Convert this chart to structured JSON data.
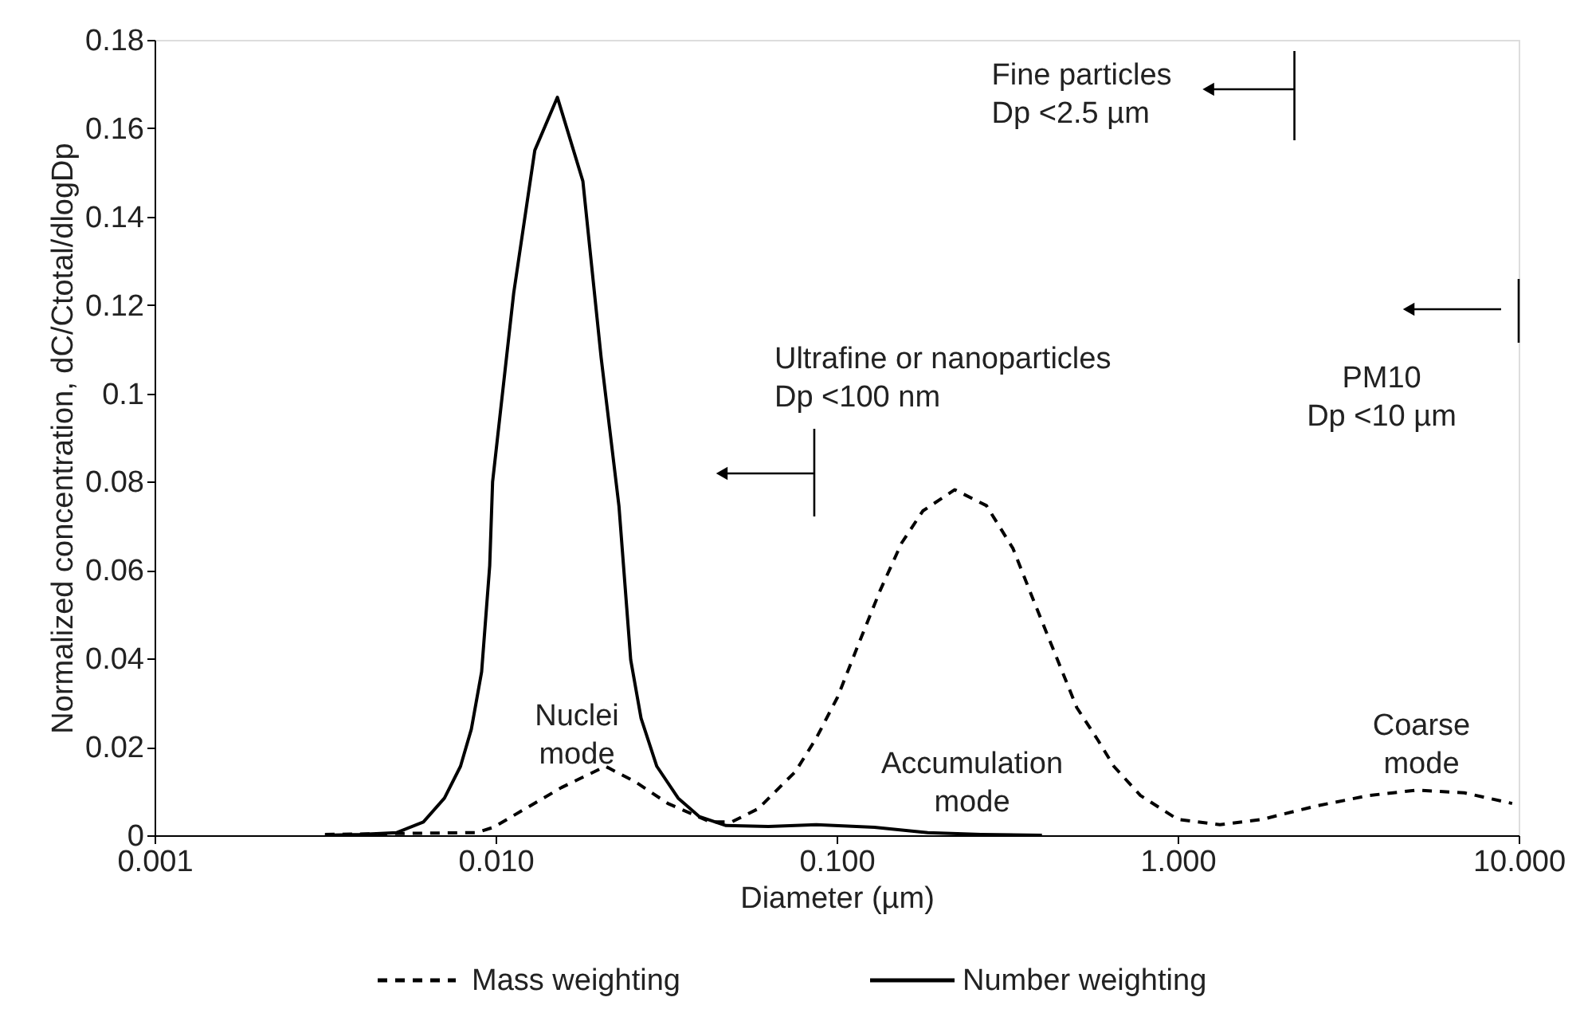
{
  "chart_data": {
    "type": "line",
    "xlabel": "Diameter (µm)",
    "ylabel": "Normalized concentration, dC/Ctotal/dlogDp",
    "log": "x",
    "xlim": [
      0.001,
      10
    ],
    "xticks": [
      {
        "value": 0.001,
        "label": "0.001"
      },
      {
        "value": 0.01,
        "label": "0.010"
      },
      {
        "value": 0.1,
        "label": "0.100"
      },
      {
        "value": 1,
        "label": "1.000"
      },
      {
        "value": 10,
        "label": "10.000"
      }
    ],
    "ylim": [
      0,
      0.18
    ],
    "yticks": [
      0,
      0.02,
      0.04,
      0.06,
      0.08,
      0.1,
      0.12,
      0.14,
      0.16,
      0.18
    ],
    "grid": false,
    "legend": "bottom",
    "marker": "none",
    "series": [
      {
        "name": "Mass weighting",
        "color": "#000000",
        "line_style": "dashed",
        "x": [
          0.00316,
          0.00879,
          0.00986,
          0.01259,
          0.0156,
          0.021,
          0.0258,
          0.032,
          0.0426,
          0.0492,
          0.0589,
          0.0704,
          0.0757,
          0.0872,
          0.1007,
          0.116,
          0.134,
          0.155,
          0.179,
          0.222,
          0.275,
          0.329,
          0.379,
          0.438,
          0.506,
          0.583,
          0.65,
          0.778,
          1.0,
          1.33,
          1.77,
          2.54,
          3.64,
          5.02,
          6.93,
          9.57
        ],
        "values": [
          0.0002,
          0.0006,
          0.0018,
          0.0066,
          0.0108,
          0.0156,
          0.012,
          0.0072,
          0.003,
          0.003,
          0.006,
          0.012,
          0.0144,
          0.022,
          0.0313,
          0.0433,
          0.0553,
          0.0661,
          0.0734,
          0.0782,
          0.0746,
          0.0649,
          0.0529,
          0.0409,
          0.0289,
          0.0216,
          0.0156,
          0.009,
          0.0036,
          0.0024,
          0.0036,
          0.0066,
          0.009,
          0.0102,
          0.0096,
          0.0072
        ]
      },
      {
        "name": "Number weighting",
        "color": "#000000",
        "line_style": "solid",
        "x": [
          0.00316,
          0.004,
          0.00513,
          0.00614,
          0.00708,
          0.00789,
          0.00849,
          0.0091,
          0.00961,
          0.0098,
          0.0113,
          0.01303,
          0.01518,
          0.01803,
          0.0204,
          0.023,
          0.0249,
          0.0267,
          0.0297,
          0.0343,
          0.0396,
          0.0474,
          0.0631,
          0.0872,
          0.129,
          0.185,
          0.265,
          0.4
        ],
        "values": [
          0.0,
          0.0002,
          0.0006,
          0.003,
          0.0084,
          0.0156,
          0.024,
          0.037,
          0.061,
          0.08,
          0.1227,
          0.155,
          0.167,
          0.148,
          0.108,
          0.0745,
          0.0397,
          0.0265,
          0.0156,
          0.0084,
          0.0042,
          0.0022,
          0.002,
          0.0024,
          0.0018,
          0.0006,
          0.0002,
          0.0
        ]
      }
    ],
    "annotations": [
      "Nuclei\nmode",
      "Accumulation\nmode",
      "Coarse\nmode"
    ],
    "ref_lines": [
      {
        "axis": "x",
        "value": 0.086,
        "label": "Ultrafine or nanoparticles\nDp <100 nm"
      },
      {
        "axis": "x",
        "value": 2.2,
        "label": "Fine particles\nDp <2.5 µm"
      },
      {
        "axis": "x",
        "value": 10,
        "label": "PM10\nDp <10 µm"
      }
    ]
  }
}
